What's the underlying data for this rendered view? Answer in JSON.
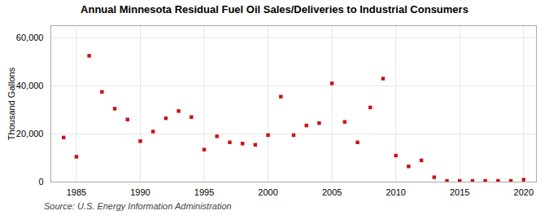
{
  "chart_data": {
    "type": "scatter",
    "title": "Annual Minnesota Residual Fuel Oil Sales/Deliveries to Industrial Consumers",
    "ylabel": "Thousand Gallons",
    "source": "Source: U.S. Energy Information Administration",
    "x": [
      1984,
      1985,
      1986,
      1987,
      1988,
      1989,
      1990,
      1991,
      1992,
      1993,
      1994,
      1995,
      1996,
      1997,
      1998,
      1999,
      2000,
      2001,
      2002,
      2003,
      2004,
      2005,
      2006,
      2007,
      2008,
      2009,
      2010,
      2011,
      2012,
      2013,
      2014,
      2015,
      2016,
      2017,
      2018,
      2019,
      2020
    ],
    "values": [
      18500,
      10500,
      52500,
      37500,
      30500,
      26000,
      17000,
      21000,
      26500,
      29500,
      27000,
      13500,
      19000,
      16500,
      16000,
      15500,
      19500,
      35500,
      19500,
      23500,
      24500,
      41000,
      25000,
      16500,
      31000,
      43000,
      11000,
      6500,
      9000,
      2000,
      500,
      500,
      500,
      500,
      500,
      500,
      1000
    ],
    "color": "#cc1111",
    "marker": "square",
    "xlim": [
      1983,
      2021
    ],
    "ylim": [
      0,
      65000
    ],
    "xticks": [
      1985,
      1990,
      1995,
      2000,
      2005,
      2010,
      2015,
      2020
    ],
    "yticks": [
      0,
      {
        "value": 20000,
        "label": "20,000"
      },
      {
        "value": 40000,
        "label": "40,000"
      },
      {
        "value": 60000,
        "label": "60,000"
      }
    ],
    "grid": true
  }
}
